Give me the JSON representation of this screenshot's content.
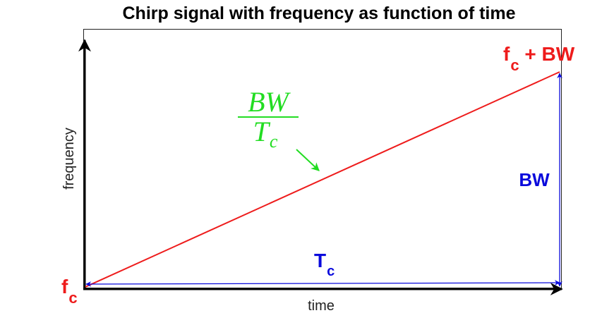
{
  "title": "Chirp signal with frequency as function of time",
  "axes": {
    "xlabel": "time",
    "ylabel": "frequency"
  },
  "annotations": {
    "start_freq": {
      "main": "f",
      "sub": "c"
    },
    "end_freq": {
      "main": "f",
      "sub": "c",
      "rest": " + BW"
    },
    "bandwidth": "BW",
    "duration": {
      "main": "T",
      "sub": "c"
    },
    "slope": {
      "numerator": "BW",
      "denominator_main": "T",
      "denominator_sub": "c"
    }
  },
  "colors": {
    "chirp_line": "#ee1c1c",
    "dimension_arrows": "#0a0adc",
    "slope_label": "#22dd22",
    "axes": "#000000"
  }
}
